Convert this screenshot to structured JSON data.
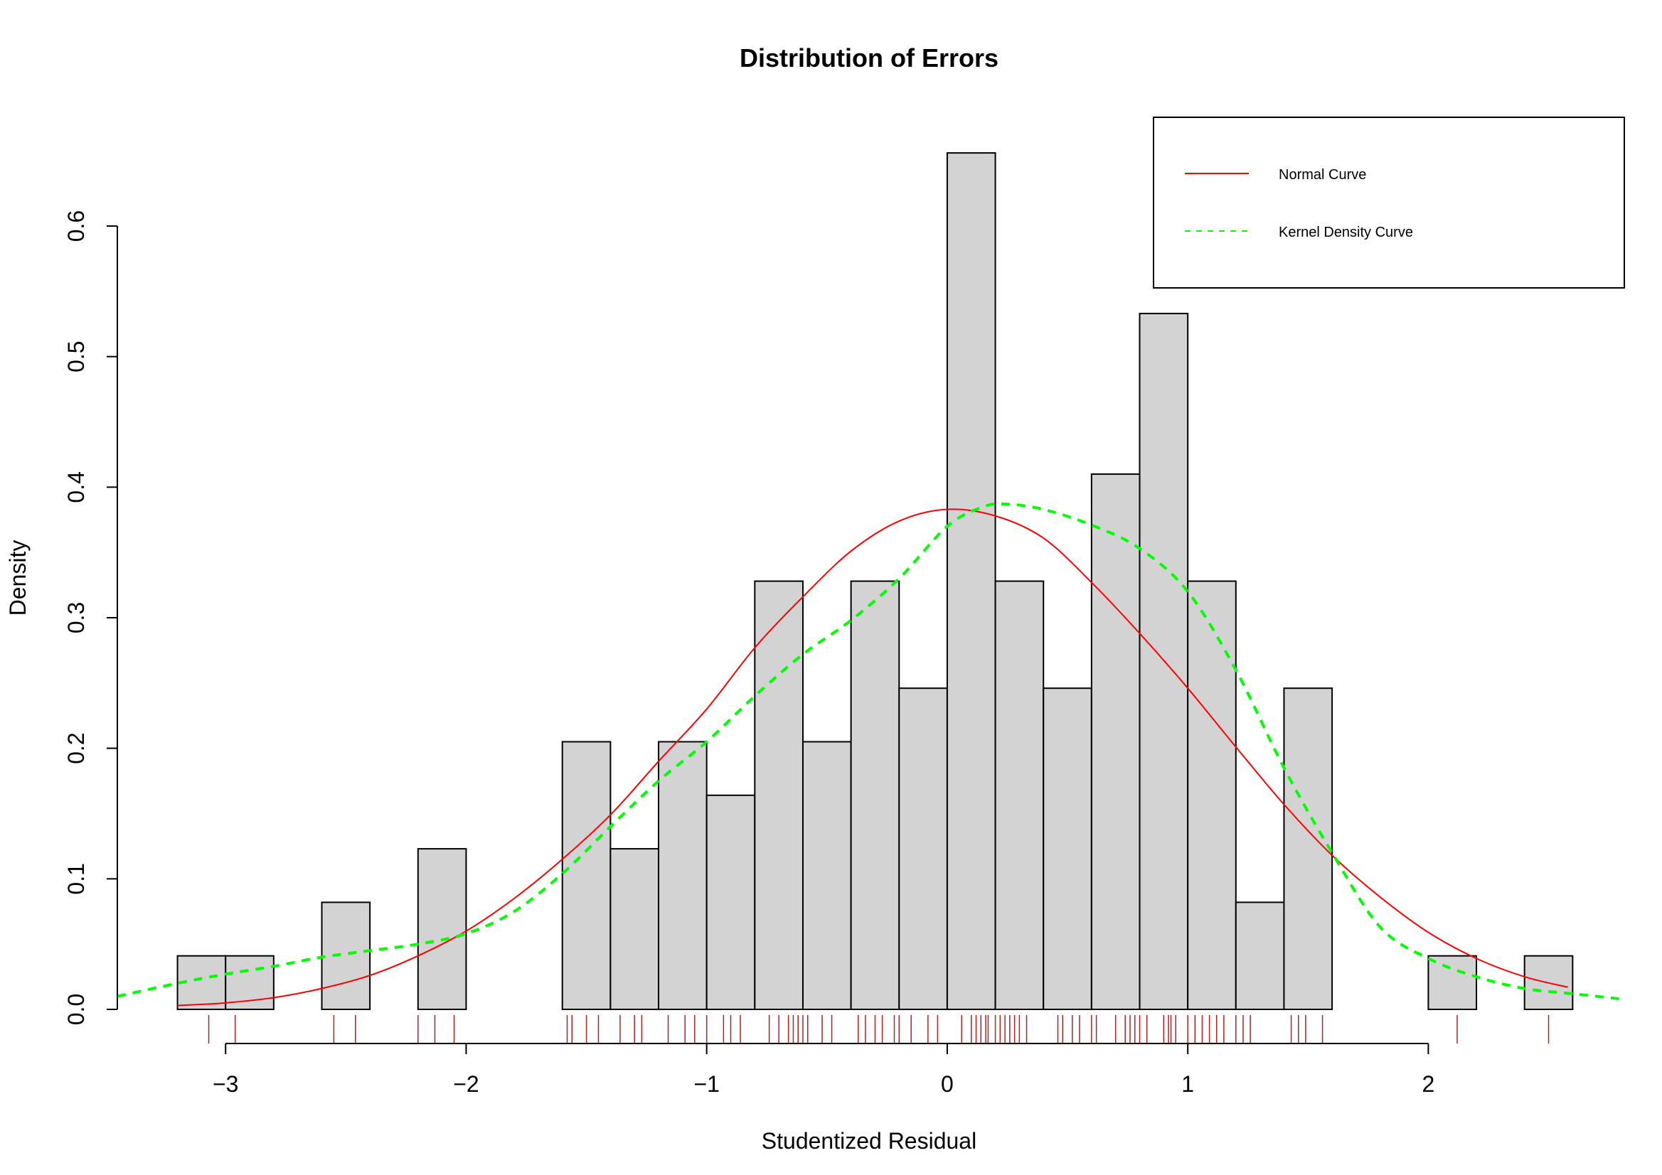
{
  "chart_data": {
    "type": "bar",
    "title": "Distribution of Errors",
    "xlabel": "Studentized Residual",
    "ylabel": "Density",
    "xlim": [
      -3.45,
      2.8
    ],
    "ylim": [
      0,
      0.6
    ],
    "x_ticks": [
      -3,
      -2,
      -1,
      0,
      1,
      2
    ],
    "x_tick_labels": [
      "−3",
      "−2",
      "−1",
      "0",
      "1",
      "2"
    ],
    "y_ticks": [
      0.0,
      0.1,
      0.2,
      0.3,
      0.4,
      0.5,
      0.6
    ],
    "y_tick_labels": [
      "0.0",
      "0.1",
      "0.2",
      "0.3",
      "0.4",
      "0.5",
      "0.6"
    ],
    "histogram": {
      "fill": "#d3d3d3",
      "bins": [
        {
          "x0": -3.2,
          "x1": -3.0,
          "density": 0.041
        },
        {
          "x0": -3.0,
          "x1": -2.8,
          "density": 0.041
        },
        {
          "x0": -2.8,
          "x1": -2.6,
          "density": 0.0
        },
        {
          "x0": -2.6,
          "x1": -2.4,
          "density": 0.082
        },
        {
          "x0": -2.4,
          "x1": -2.2,
          "density": 0.0
        },
        {
          "x0": -2.2,
          "x1": -2.0,
          "density": 0.123
        },
        {
          "x0": -2.0,
          "x1": -1.8,
          "density": 0.0
        },
        {
          "x0": -1.8,
          "x1": -1.6,
          "density": 0.0
        },
        {
          "x0": -1.6,
          "x1": -1.4,
          "density": 0.205
        },
        {
          "x0": -1.4,
          "x1": -1.2,
          "density": 0.123
        },
        {
          "x0": -1.2,
          "x1": -1.0,
          "density": 0.205
        },
        {
          "x0": -1.0,
          "x1": -0.8,
          "density": 0.164
        },
        {
          "x0": -0.8,
          "x1": -0.6,
          "density": 0.328
        },
        {
          "x0": -0.6,
          "x1": -0.4,
          "density": 0.205
        },
        {
          "x0": -0.4,
          "x1": -0.2,
          "density": 0.328
        },
        {
          "x0": -0.2,
          "x1": 0.0,
          "density": 0.246
        },
        {
          "x0": 0.0,
          "x1": 0.2,
          "density": 0.656
        },
        {
          "x0": 0.2,
          "x1": 0.4,
          "density": 0.328
        },
        {
          "x0": 0.4,
          "x1": 0.6,
          "density": 0.246
        },
        {
          "x0": 0.6,
          "x1": 0.8,
          "density": 0.41
        },
        {
          "x0": 0.8,
          "x1": 1.0,
          "density": 0.533
        },
        {
          "x0": 1.0,
          "x1": 1.2,
          "density": 0.328
        },
        {
          "x0": 1.2,
          "x1": 1.4,
          "density": 0.082
        },
        {
          "x0": 1.4,
          "x1": 1.6,
          "density": 0.246
        },
        {
          "x0": 1.6,
          "x1": 1.8,
          "density": 0.0
        },
        {
          "x0": 1.8,
          "x1": 2.0,
          "density": 0.0
        },
        {
          "x0": 2.0,
          "x1": 2.2,
          "density": 0.041
        },
        {
          "x0": 2.2,
          "x1": 2.4,
          "density": 0.0
        },
        {
          "x0": 2.4,
          "x1": 2.6,
          "density": 0.041
        }
      ]
    },
    "series": [
      {
        "name": "Normal Curve",
        "color": "#ff0000",
        "style": "solid",
        "x": [
          -3.2,
          -3.0,
          -2.8,
          -2.6,
          -2.4,
          -2.2,
          -2.0,
          -1.8,
          -1.6,
          -1.4,
          -1.2,
          -1.0,
          -0.8,
          -0.6,
          -0.4,
          -0.2,
          0.0,
          0.2,
          0.4,
          0.6,
          0.8,
          1.0,
          1.2,
          1.4,
          1.6,
          1.8,
          2.0,
          2.2,
          2.4,
          2.58
        ],
        "y": [
          0.003,
          0.005,
          0.009,
          0.016,
          0.026,
          0.041,
          0.06,
          0.085,
          0.115,
          0.149,
          0.19,
          0.23,
          0.277,
          0.316,
          0.351,
          0.374,
          0.383,
          0.378,
          0.361,
          0.327,
          0.288,
          0.246,
          0.201,
          0.157,
          0.118,
          0.086,
          0.059,
          0.039,
          0.025,
          0.017
        ]
      },
      {
        "name": "Kernel Density Curve",
        "color": "#00ff00",
        "style": "dashed",
        "x": [
          -3.45,
          -3.2,
          -3.0,
          -2.8,
          -2.6,
          -2.4,
          -2.2,
          -2.0,
          -1.8,
          -1.6,
          -1.4,
          -1.2,
          -1.0,
          -0.8,
          -0.6,
          -0.4,
          -0.2,
          0.0,
          0.15,
          0.25,
          0.4,
          0.6,
          0.8,
          1.0,
          1.2,
          1.4,
          1.6,
          1.8,
          2.0,
          2.2,
          2.4,
          2.6,
          2.8
        ],
        "y": [
          0.01,
          0.02,
          0.027,
          0.033,
          0.04,
          0.045,
          0.05,
          0.058,
          0.075,
          0.104,
          0.14,
          0.175,
          0.205,
          0.24,
          0.272,
          0.298,
          0.33,
          0.37,
          0.385,
          0.387,
          0.383,
          0.371,
          0.353,
          0.32,
          0.26,
          0.185,
          0.12,
          0.063,
          0.039,
          0.025,
          0.016,
          0.012,
          0.008
        ]
      }
    ],
    "rug": {
      "color": "#b22222",
      "x": [
        -3.07,
        -2.96,
        -2.55,
        -2.46,
        -2.2,
        -2.13,
        -2.05,
        -1.58,
        -1.56,
        -1.5,
        -1.45,
        -1.36,
        -1.3,
        -1.27,
        -1.16,
        -1.09,
        -1.05,
        -1.0,
        -0.93,
        -0.9,
        -0.86,
        -0.74,
        -0.7,
        -0.66,
        -0.64,
        -0.62,
        -0.6,
        -0.58,
        -0.52,
        -0.48,
        -0.37,
        -0.34,
        -0.3,
        -0.27,
        -0.22,
        -0.2,
        -0.15,
        -0.08,
        -0.04,
        0.06,
        0.1,
        0.12,
        0.14,
        0.16,
        0.17,
        0.2,
        0.22,
        0.24,
        0.26,
        0.28,
        0.3,
        0.33,
        0.46,
        0.48,
        0.52,
        0.55,
        0.6,
        0.62,
        0.7,
        0.74,
        0.76,
        0.78,
        0.8,
        0.83,
        0.9,
        0.92,
        0.93,
        0.95,
        1.0,
        1.03,
        1.06,
        1.09,
        1.12,
        1.15,
        1.2,
        1.23,
        1.26,
        1.43,
        1.46,
        1.49,
        1.56,
        2.12,
        2.5
      ]
    },
    "legend": {
      "position": "top-right",
      "entries": [
        "Normal Curve",
        "Kernel Density Curve"
      ]
    }
  }
}
